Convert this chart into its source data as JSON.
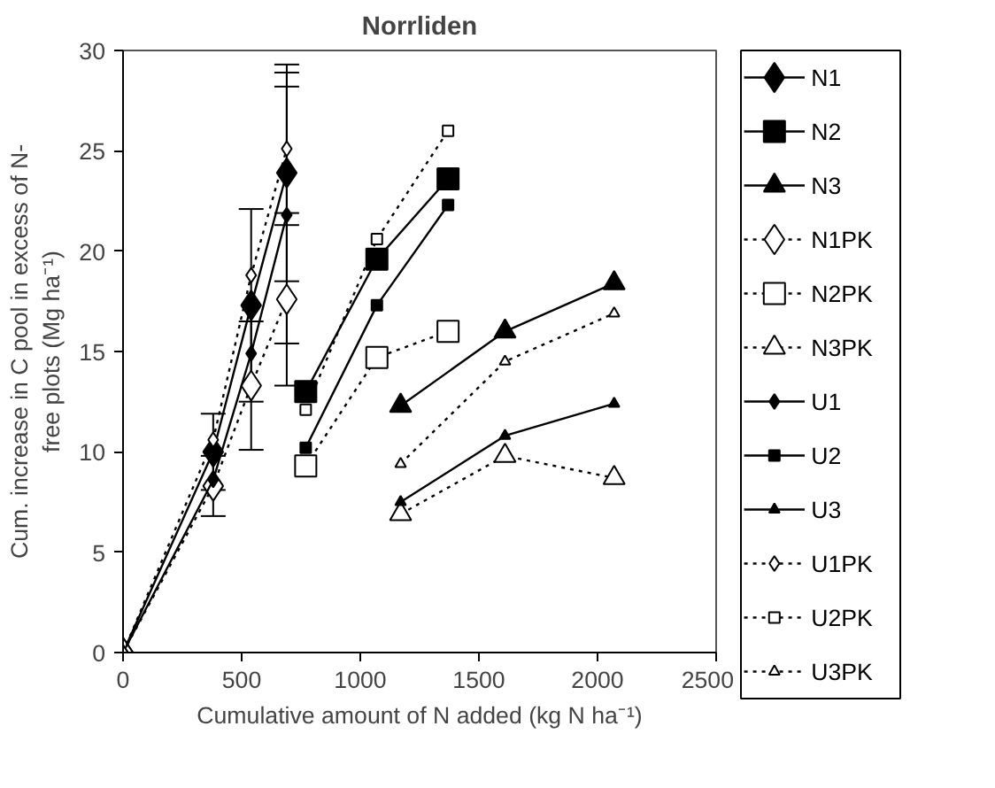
{
  "chart_data": {
    "type": "line",
    "title": "Norrliden",
    "xlabel": "Cumulative amount of N added (kg N ha⁻¹)",
    "ylabel": "Cum. increase in C pool in excess of N-\nfree plots (Mg ha⁻¹)",
    "xlim": [
      0,
      2500
    ],
    "xticks": [
      0,
      500,
      1000,
      1500,
      2000,
      2500
    ],
    "ylim": [
      0,
      30
    ],
    "yticks": [
      0,
      5,
      10,
      15,
      20,
      25,
      30
    ],
    "grid": false,
    "legend": "right",
    "series": [
      {
        "name": "N1",
        "color": "#000000",
        "marker": "diamond",
        "line_style": "solid",
        "x": [
          0,
          380,
          540,
          690
        ],
        "values": [
          0,
          10.0,
          17.3,
          23.9
        ],
        "errors": [
          null,
          1.9,
          4.8,
          5.4
        ]
      },
      {
        "name": "N2",
        "color": "#000000",
        "marker": "square",
        "line_style": "solid",
        "x": [
          770,
          1070,
          1370
        ],
        "values": [
          13.0,
          19.6,
          23.6
        ]
      },
      {
        "name": "N3",
        "color": "#000000",
        "marker": "triangle",
        "line_style": "solid",
        "x": [
          1170,
          1610,
          2070
        ],
        "values": [
          12.3,
          16.0,
          18.4
        ]
      },
      {
        "name": "N1PK",
        "color": "#000000",
        "marker": "diamond",
        "line_style": "dotted",
        "x": [
          0,
          380,
          540,
          690
        ],
        "values": [
          0,
          8.3,
          13.3,
          17.6
        ],
        "errors": [
          null,
          1.5,
          3.2,
          4.3
        ]
      },
      {
        "name": "N2PK",
        "color": "#000000",
        "marker": "square",
        "line_style": "dotted",
        "x": [
          770,
          1070,
          1370
        ],
        "values": [
          9.3,
          14.7,
          16.0
        ]
      },
      {
        "name": "N3PK",
        "color": "#000000",
        "marker": "triangle",
        "line_style": "dotted",
        "x": [
          1170,
          1610,
          2070
        ],
        "values": [
          6.9,
          9.8,
          8.7
        ]
      },
      {
        "name": "U1",
        "color": "#000000",
        "marker": "diamond",
        "line_style": "solid",
        "x": [
          0,
          380,
          540,
          690
        ],
        "values": [
          0,
          8.6,
          14.9,
          21.8
        ],
        "errors": [
          null,
          null,
          null,
          6.4
        ]
      },
      {
        "name": "U2",
        "color": "#000000",
        "marker": "square",
        "line_style": "solid",
        "x": [
          770,
          1070,
          1370
        ],
        "values": [
          10.2,
          17.3,
          22.3
        ]
      },
      {
        "name": "U3",
        "color": "#000000",
        "marker": "triangle",
        "line_style": "solid",
        "x": [
          1170,
          1610,
          2070
        ],
        "values": [
          7.5,
          10.8,
          12.4
        ]
      },
      {
        "name": "U1PK",
        "color": "#000000",
        "marker": "diamond",
        "line_style": "dotted",
        "x": [
          0,
          380,
          540,
          690
        ],
        "values": [
          0,
          10.6,
          18.8,
          25.1
        ],
        "errors": [
          null,
          null,
          null,
          3.8
        ]
      },
      {
        "name": "U2PK",
        "color": "#000000",
        "marker": "square",
        "line_style": "dotted",
        "x": [
          770,
          1070,
          1370
        ],
        "values": [
          12.1,
          20.6,
          26.0
        ]
      },
      {
        "name": "U3PK",
        "color": "#000000",
        "marker": "triangle",
        "line_style": "dotted",
        "x": [
          1170,
          1610,
          2070
        ],
        "values": [
          9.4,
          14.5,
          16.9
        ]
      }
    ]
  }
}
